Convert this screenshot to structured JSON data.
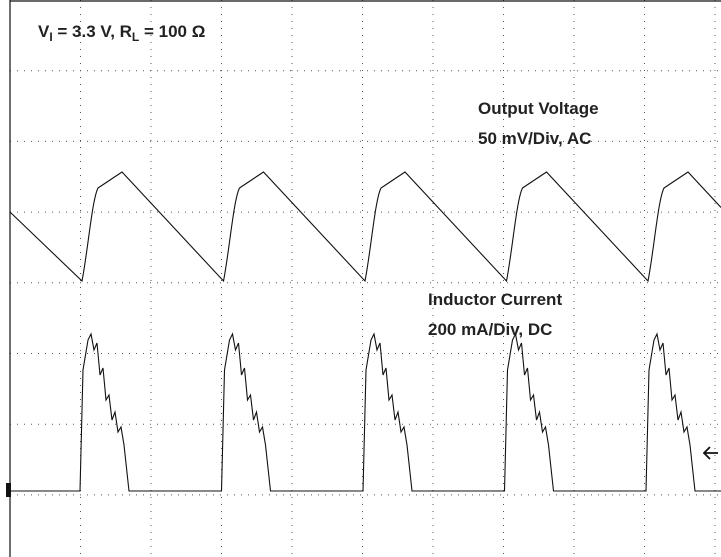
{
  "conditions": {
    "v": "V",
    "v_sub": "I",
    "middle": " = 3.3 V, R",
    "r_sub": "L",
    "end": " = 100 Ω"
  },
  "traces": [
    {
      "name": "Output Voltage",
      "scale": "50 mV/Div, AC"
    },
    {
      "name": "Inductor Current",
      "scale": "200 mA/Div, DC"
    }
  ]
}
